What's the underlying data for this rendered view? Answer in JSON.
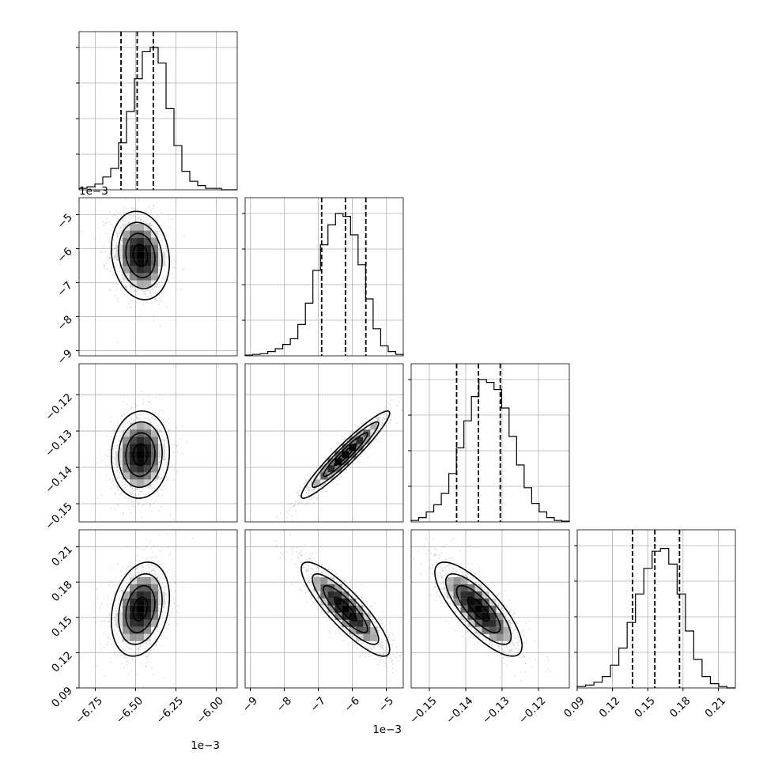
{
  "chart_data": {
    "type": "corner",
    "title": "",
    "parameters": 4,
    "grid": true,
    "axes": [
      {
        "index": 0,
        "range": [
          -6.85,
          -5.87
        ],
        "scale_label": "1e−3",
        "ticks": [
          -6.75,
          -6.5,
          -6.25,
          -6.0
        ],
        "tick_labels": [
          "−6.75",
          "−6.50",
          "−6.25",
          "−6.00"
        ],
        "quantiles": [
          -6.59,
          -6.49,
          -6.39
        ],
        "mean": -6.47,
        "sd": 0.09
      },
      {
        "index": 1,
        "range": [
          -9.15,
          -4.5
        ],
        "scale_label": "1e−3",
        "ticks": [
          -9,
          -8,
          -7,
          -6,
          -5
        ],
        "tick_labels": [
          "−9",
          "−8",
          "−7",
          "−6",
          "−5"
        ],
        "quantiles": [
          -6.9,
          -6.2,
          -5.6
        ],
        "mean": -6.2,
        "sd": 0.65
      },
      {
        "index": 2,
        "range": [
          -0.155,
          -0.1115
        ],
        "scale_label": "",
        "ticks": [
          -0.15,
          -0.14,
          -0.13,
          -0.12
        ],
        "tick_labels": [
          "−0.15",
          "−0.14",
          "−0.13",
          "−0.12"
        ],
        "quantiles": [
          -0.1425,
          -0.1365,
          -0.1305
        ],
        "mean": -0.1365,
        "sd": 0.006
      },
      {
        "index": 3,
        "range": [
          0.09,
          0.2245
        ],
        "scale_label": "",
        "ticks": [
          0.09,
          0.12,
          0.15,
          0.18,
          0.21
        ],
        "tick_labels": [
          "0.09",
          "0.12",
          "0.15",
          "0.18",
          "0.21"
        ],
        "quantiles": [
          0.137,
          0.156,
          0.177
        ],
        "mean": 0.157,
        "sd": 0.02
      }
    ],
    "histograms": [
      {
        "param": 0,
        "counts": [
          1,
          2,
          4,
          9,
          15,
          33,
          55,
          78,
          97,
          100,
          89,
          57,
          31,
          13,
          6,
          3,
          1,
          1,
          0,
          0
        ]
      },
      {
        "param": 1,
        "counts": [
          0.5,
          1,
          1.5,
          3,
          5,
          8,
          12,
          22,
          37,
          60,
          78,
          92,
          100,
          98,
          85,
          64,
          40,
          19,
          7,
          3,
          1
        ]
      },
      {
        "param": 2,
        "counts": [
          1,
          3,
          7,
          12,
          20,
          34,
          52,
          71,
          88,
          100,
          98,
          93,
          80,
          60,
          40,
          24,
          13,
          7,
          3,
          1,
          0.5
        ]
      },
      {
        "param": 3,
        "counts": [
          1,
          2,
          4,
          8,
          16,
          28,
          46,
          66,
          84,
          96,
          98,
          87,
          66,
          40,
          20,
          8,
          3,
          1,
          0
        ]
      }
    ],
    "pairs": [
      {
        "x": 0,
        "y": 1,
        "correlation": -0.15
      },
      {
        "x": 0,
        "y": 2,
        "correlation": 0.05
      },
      {
        "x": 0,
        "y": 3,
        "correlation": 0.25
      },
      {
        "x": 1,
        "y": 2,
        "correlation": 0.95
      },
      {
        "x": 1,
        "y": 3,
        "correlation": -0.86
      },
      {
        "x": 2,
        "y": 3,
        "correlation": -0.78
      }
    ],
    "contour_levels_sigma": [
      0.5,
      1.0,
      1.5,
      2.0
    ]
  }
}
